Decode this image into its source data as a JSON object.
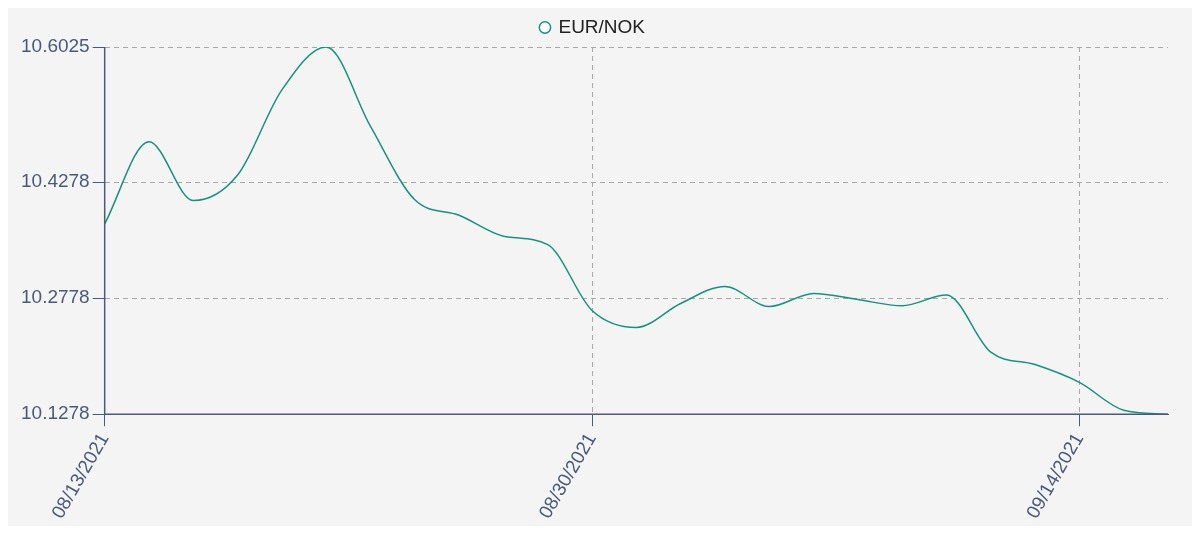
{
  "chart_data": {
    "type": "line",
    "categories": [
      "08/13/2021",
      null,
      null,
      null,
      null,
      null,
      null,
      null,
      null,
      null,
      null,
      "08/30/2021",
      null,
      null,
      null,
      null,
      null,
      null,
      null,
      null,
      null,
      null,
      "09/14/2021",
      null,
      null
    ],
    "series": [
      {
        "name": "EUR/NOK",
        "color": "#14947f",
        "values": [
          10.374,
          10.48,
          10.404,
          10.437,
          10.547,
          10.6025,
          10.5,
          10.405,
          10.385,
          10.358,
          10.347,
          10.262,
          10.24,
          10.271,
          10.293,
          10.267,
          10.284,
          10.276,
          10.268,
          10.282,
          10.208,
          10.192,
          10.169,
          10.133,
          10.1278
        ]
      }
    ],
    "ylim": [
      10.1278,
      10.6025
    ],
    "yticks": [
      10.1278,
      10.2778,
      10.4278,
      10.6025
    ],
    "grid": true,
    "legend": "top",
    "marker": "none",
    "line_style": "solid"
  }
}
